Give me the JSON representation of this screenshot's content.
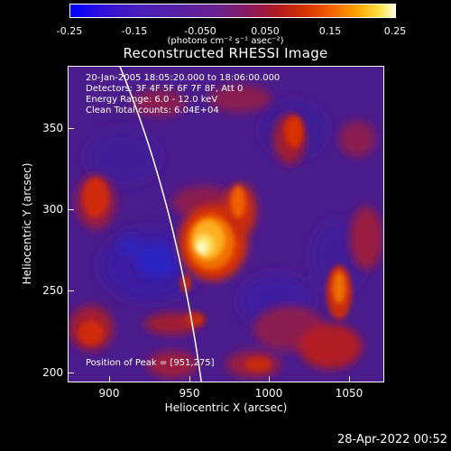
{
  "colorbar": {
    "ticks": [
      "-0.25",
      "-0.15",
      "-0.050",
      "0.050",
      "0.15",
      "0.25"
    ],
    "units": "(photons cm⁻² s⁻¹ asec⁻²)"
  },
  "title": "Reconstructed RHESSI Image",
  "annotations": {
    "time": "20-Jan-2005 18:05:20.000 to 18:06:00.000",
    "detectors": "Detectors: 3F 4F 5F 6F 7F 8F, Att 0",
    "energy": "Energy Range: 6.0 - 12.0 keV",
    "clean": "Clean    Total counts: 6.04E+04",
    "peak": "Position of Peak = [951,275]"
  },
  "axes": {
    "xlabel": "Heliocentric X (arcsec)",
    "ylabel": "Heliocentric Y (arcsec)",
    "xticks": [
      "900",
      "950",
      "1000",
      "1050"
    ],
    "yticks": [
      "350",
      "300",
      "250",
      "200"
    ],
    "xrange": [
      875,
      1067
    ],
    "yrange": [
      195,
      387
    ]
  },
  "footer": {
    "date": "28-Apr-2022 00:52"
  }
}
